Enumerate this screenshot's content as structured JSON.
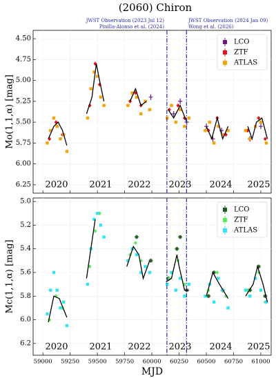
{
  "chart_data": [
    {
      "type": "scatter",
      "title": "(2060) Chiron",
      "annotations": [
        "JWST Observation (2023 Jul 12)",
        "Pinilla-Alonso et al. (2024)",
        "JWST Observation (2024 Jan 09)",
        "Wong et al. (2026)"
      ],
      "ylabel": "Mo(1,1,α) [mag]",
      "xlim": [
        58910,
        61095
      ],
      "xticks": [
        59000,
        59250,
        59500,
        59750,
        60000,
        60250,
        60500,
        60750,
        61000
      ],
      "ylim": [
        4.4,
        6.35
      ],
      "y_inverted": true,
      "yticks": [
        {
          "value": 4.5,
          "label": "4.50"
        },
        4.75,
        {
          "value": 5,
          "label": "5.00"
        },
        5.25,
        {
          "value": 5.5,
          "label": "5.50"
        },
        5.75,
        {
          "value": 6,
          "label": "6.00"
        },
        6.25
      ],
      "vlines": [
        60138,
        60318
      ],
      "grid": true,
      "legend": "upper right",
      "year_labels": [
        "2020",
        "2021",
        "2022",
        "2023",
        "2024",
        "2025"
      ],
      "series": [
        {
          "name": "LCO",
          "color": "#6a1b7a",
          "marker": "plus",
          "x": [
            59990,
            60200,
            60260,
            60320,
            60500,
            60560,
            60640,
            60900,
            61000
          ],
          "values": [
            5.2,
            5.4,
            5.25,
            5.5,
            5.55,
            5.7,
            5.6,
            5.7,
            5.55
          ]
        },
        {
          "name": "ZTF",
          "color": "#e8101c",
          "marker": "diamond",
          "x": [
            59060,
            59120,
            59180,
            59430,
            59480,
            59520,
            59800,
            59850,
            59900,
            60160,
            60240,
            60300,
            60520,
            60600,
            60680,
            60880,
            60980,
            61040
          ],
          "values": [
            5.7,
            5.5,
            5.65,
            5.3,
            4.8,
            5.05,
            5.25,
            5.15,
            5.3,
            5.35,
            5.3,
            5.45,
            5.6,
            5.45,
            5.65,
            5.6,
            5.45,
            5.7
          ]
        },
        {
          "name": "ATLAS",
          "color": "#f5a30a",
          "marker": "square",
          "x": [
            59040,
            59070,
            59100,
            59130,
            59160,
            59190,
            59220,
            59410,
            59440,
            59470,
            59500,
            59530,
            59560,
            59780,
            59820,
            59860,
            59900,
            59940,
            59980,
            60140,
            60180,
            60220,
            60260,
            60300,
            60340,
            60490,
            60530,
            60570,
            60610,
            60650,
            60700,
            60860,
            60900,
            60950,
            61000,
            61050
          ],
          "values": [
            5.75,
            5.6,
            5.45,
            5.55,
            5.7,
            5.65,
            5.85,
            5.45,
            5.1,
            4.9,
            4.95,
            5.2,
            5.3,
            5.3,
            5.15,
            5.2,
            5.4,
            5.25,
            5.35,
            5.45,
            5.3,
            5.5,
            5.35,
            5.55,
            5.45,
            5.6,
            5.5,
            5.75,
            5.55,
            5.65,
            5.6,
            5.6,
            5.7,
            5.55,
            5.5,
            5.75
          ]
        },
        {
          "color": "#000000",
          "kind": "line",
          "x": [
            59050,
            59100,
            59140,
            59180,
            59220,
            59300,
            59400,
            59450,
            59490,
            59520,
            59560,
            59650,
            59800,
            59850,
            59900,
            59950,
            60050,
            60150,
            60200,
            60260,
            60320,
            60400,
            60500,
            60550,
            60600,
            60650,
            60700,
            60780,
            60880,
            60920,
            60960,
            61010,
            61060
          ],
          "values": [
            5.7,
            5.55,
            5.5,
            5.6,
            5.78,
            null,
            5.4,
            5.2,
            4.8,
            5.0,
            5.25,
            null,
            5.25,
            5.1,
            5.3,
            5.25,
            null,
            5.35,
            5.45,
            5.3,
            5.5,
            null,
            5.55,
            5.7,
            5.45,
            5.7,
            5.55,
            null,
            5.55,
            5.7,
            5.5,
            5.45,
            5.7
          ]
        }
      ]
    },
    {
      "type": "scatter",
      "xlabel": "MJD",
      "ylabel": "Mc(1,1,α) [mag]",
      "xlim": [
        58910,
        61095
      ],
      "xticks": [
        59000,
        59250,
        59500,
        59750,
        60000,
        60250,
        60500,
        60750,
        61000
      ],
      "ylim": [
        4.97,
        6.3
      ],
      "y_inverted": true,
      "yticks": [
        {
          "value": 5,
          "label": "5.0"
        },
        5.2,
        5.4,
        5.6,
        5.8,
        {
          "value": 6,
          "label": "6.0"
        },
        6.2
      ],
      "vlines": [
        60138,
        60318
      ],
      "grid": true,
      "legend": "upper right",
      "year_labels": [
        "2020",
        "2021",
        "2022",
        "2023",
        "2024",
        "2025"
      ],
      "series": [
        {
          "name": "LCO",
          "color": "#1e5c1e",
          "marker": "star",
          "x": [
            59860,
            59990,
            60150,
            60230,
            60260,
            60320,
            60520,
            60570,
            60650,
            60900,
            60980,
            61040
          ],
          "values": [
            5.3,
            5.5,
            5.65,
            5.4,
            5.3,
            5.75,
            5.8,
            5.6,
            5.75,
            5.75,
            5.55,
            5.8
          ]
        },
        {
          "name": "ZTF",
          "color": "#5ee85e",
          "marker": "diamond",
          "x": [
            59060,
            59120,
            59180,
            59430,
            59480,
            59520,
            59800,
            59850,
            59900,
            60160,
            60240,
            60300,
            60520,
            60600,
            60680,
            60880,
            60980,
            61040
          ],
          "values": [
            6.0,
            5.8,
            5.9,
            5.55,
            5.25,
            5.1,
            5.45,
            5.35,
            5.5,
            5.65,
            5.5,
            5.7,
            5.75,
            5.6,
            5.8,
            5.75,
            5.6,
            5.85
          ]
        },
        {
          "name": "ATLAS",
          "color": "#2ee6f0",
          "marker": "square",
          "x": [
            59040,
            59070,
            59100,
            59130,
            59160,
            59190,
            59220,
            59410,
            59440,
            59470,
            59500,
            59530,
            59560,
            59780,
            59820,
            59860,
            59900,
            59940,
            59980,
            60140,
            60180,
            60220,
            60260,
            60300,
            60340,
            60490,
            60530,
            60570,
            60610,
            60650,
            60700,
            60860,
            60900,
            60950,
            61000,
            61050
          ],
          "values": [
            5.95,
            5.75,
            5.6,
            5.75,
            5.9,
            5.85,
            6.05,
            5.7,
            5.4,
            5.15,
            5.1,
            5.2,
            5.3,
            5.5,
            5.4,
            5.45,
            5.6,
            5.55,
            5.6,
            5.7,
            5.6,
            5.75,
            5.65,
            5.8,
            5.7,
            5.8,
            5.7,
            5.85,
            5.65,
            5.75,
            5.9,
            5.75,
            5.8,
            5.65,
            5.75,
            5.85
          ]
        },
        {
          "color": "#000000",
          "kind": "line",
          "x": [
            59050,
            59100,
            59150,
            59220,
            59300,
            59400,
            59440,
            59480,
            59600,
            59770,
            59830,
            59880,
            59920,
            59980,
            60050,
            60130,
            60180,
            60230,
            60250,
            60300,
            60340,
            60420,
            60500,
            60560,
            60620,
            60700,
            60780,
            60860,
            60930,
            60970,
            61020,
            61060
          ],
          "values": [
            6.02,
            5.8,
            5.82,
            5.98,
            null,
            5.65,
            5.4,
            5.15,
            null,
            5.55,
            5.38,
            5.45,
            5.65,
            5.5,
            null,
            5.68,
            5.65,
            5.45,
            5.55,
            5.75,
            5.75,
            null,
            5.8,
            5.6,
            5.7,
            5.82,
            null,
            5.8,
            5.7,
            5.55,
            5.7,
            5.85
          ]
        }
      ]
    }
  ]
}
